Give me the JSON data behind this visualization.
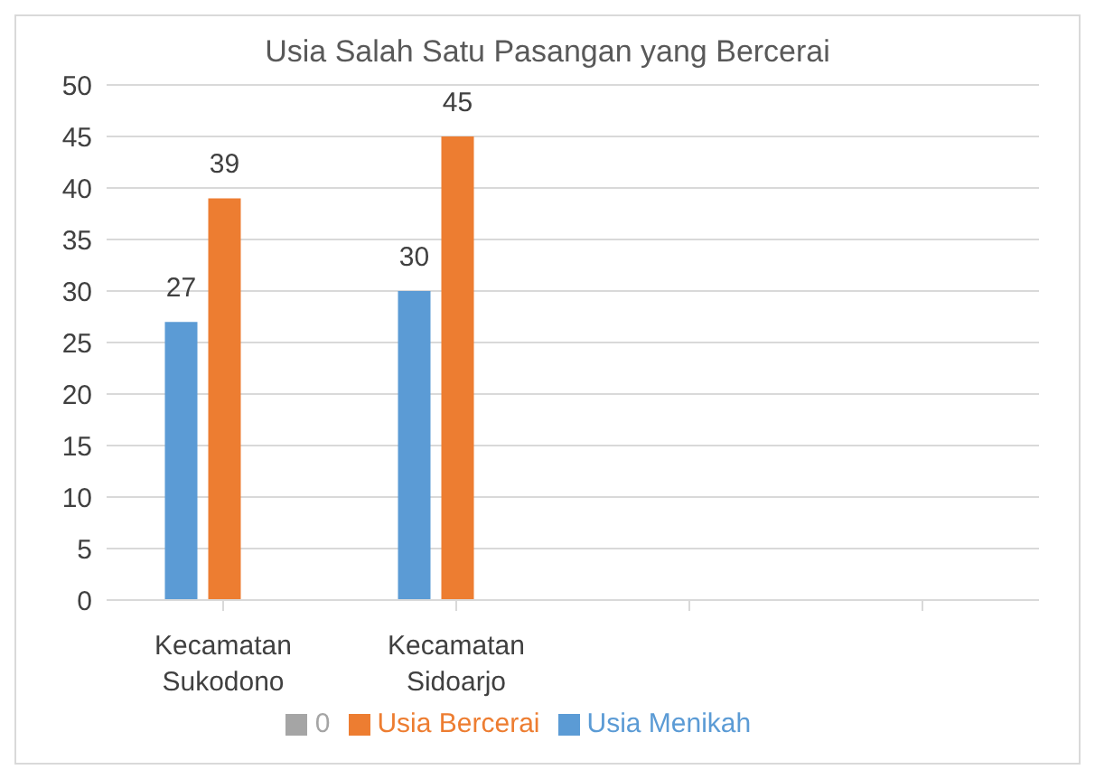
{
  "chart_data": {
    "type": "bar",
    "title": "Usia Salah Satu Pasangan yang Bercerai",
    "categories": [
      "Kecamatan Sukodono",
      "Kecamatan Sidoarjo",
      null,
      null
    ],
    "series": [
      {
        "name": "Usia Menikah",
        "color": "#5b9bd5",
        "values": [
          27,
          30,
          null,
          null
        ]
      },
      {
        "name": "Usia Bercerai",
        "color": "#ed7d31",
        "values": [
          39,
          45,
          null,
          null
        ]
      },
      {
        "name": "0",
        "color": "#a5a5a5",
        "values": [
          null,
          null,
          null,
          null
        ]
      }
    ],
    "ylim": [
      0,
      50
    ],
    "yticks": [
      0,
      5,
      10,
      15,
      20,
      25,
      30,
      35,
      40,
      45,
      50
    ],
    "grid": "y",
    "legend": "bottom",
    "data_labels": true
  }
}
